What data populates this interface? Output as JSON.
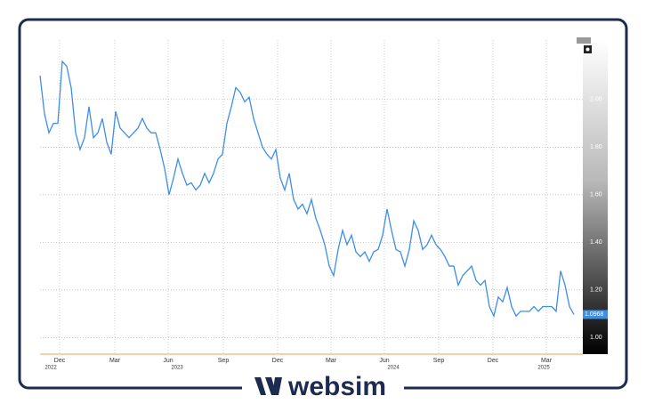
{
  "chart_data": {
    "type": "line",
    "series": [
      {
        "color": "#3d8ee6",
        "values": [
          2.1,
          1.94,
          1.86,
          1.9,
          1.9,
          2.16,
          2.14,
          2.05,
          1.86,
          1.79,
          1.84,
          1.97,
          1.84,
          1.86,
          1.92,
          1.82,
          1.77,
          1.95,
          1.88,
          1.86,
          1.84,
          1.86,
          1.88,
          1.92,
          1.88,
          1.86,
          1.86,
          1.79,
          1.71,
          1.6,
          1.67,
          1.75,
          1.69,
          1.64,
          1.65,
          1.62,
          1.64,
          1.69,
          1.65,
          1.69,
          1.75,
          1.77,
          1.9,
          1.97,
          2.05,
          2.03,
          1.99,
          2.01,
          1.92,
          1.86,
          1.8,
          1.77,
          1.75,
          1.79,
          1.67,
          1.62,
          1.69,
          1.58,
          1.54,
          1.56,
          1.52,
          1.58,
          1.5,
          1.45,
          1.39,
          1.3,
          1.26,
          1.37,
          1.45,
          1.39,
          1.43,
          1.36,
          1.34,
          1.36,
          1.32,
          1.36,
          1.37,
          1.43,
          1.54,
          1.45,
          1.37,
          1.36,
          1.3,
          1.37,
          1.49,
          1.45,
          1.37,
          1.39,
          1.43,
          1.39,
          1.37,
          1.34,
          1.3,
          1.3,
          1.22,
          1.26,
          1.28,
          1.3,
          1.24,
          1.22,
          1.24,
          1.13,
          1.09,
          1.17,
          1.15,
          1.21,
          1.13,
          1.09,
          1.11,
          1.11,
          1.11,
          1.13,
          1.11,
          1.13,
          1.13,
          1.13,
          1.11,
          1.28,
          1.22,
          1.13,
          1.0968
        ]
      }
    ],
    "xlim": [
      0,
      122
    ],
    "xticks": [
      {
        "value": 4.4,
        "label": "Dec"
      },
      {
        "value": 16.8,
        "label": "Mar"
      },
      {
        "value": 28.8,
        "label": "Jun"
      },
      {
        "value": 41.2,
        "label": "Sep"
      },
      {
        "value": 53.4,
        "label": "Dec"
      },
      {
        "value": 65.4,
        "label": "Mar"
      },
      {
        "value": 77.4,
        "label": "Jun"
      },
      {
        "value": 89.6,
        "label": "Sep"
      },
      {
        "value": 101.8,
        "label": "Dec"
      },
      {
        "value": 113.8,
        "label": "Mar"
      }
    ],
    "x_year_labels": [
      {
        "value": 2.4,
        "label": "2022"
      },
      {
        "value": 30.8,
        "label": "2023"
      },
      {
        "value": 79.4,
        "label": "2024"
      },
      {
        "value": 113.2,
        "label": "2025"
      }
    ],
    "ylim": [
      0.93,
      2.25
    ],
    "yticks": [
      {
        "value": 1.0,
        "label": "1.00"
      },
      {
        "value": 1.2,
        "label": "1.20"
      },
      {
        "value": 1.4,
        "label": "1.40"
      },
      {
        "value": 1.6,
        "label": "1.60"
      },
      {
        "value": 1.8,
        "label": "1.80"
      },
      {
        "value": 2.0,
        "label": "2.00"
      }
    ],
    "grid": true,
    "y_axis_side": "right"
  },
  "watermark": "websim"
}
